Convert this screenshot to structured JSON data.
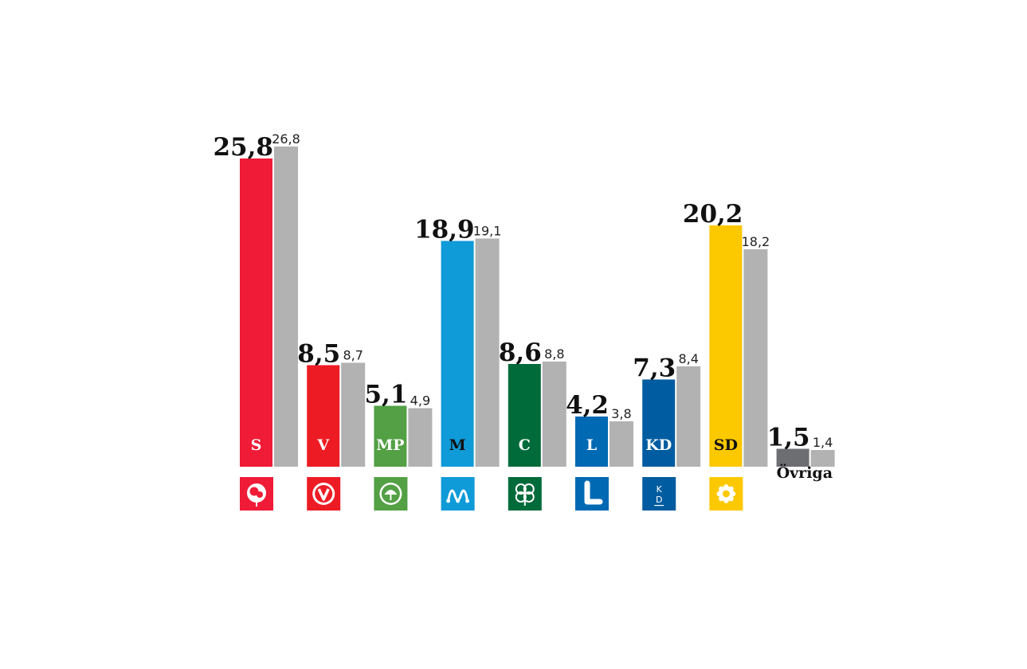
{
  "chart_data": {
    "type": "bar",
    "categories": [
      "S",
      "V",
      "MP",
      "M",
      "C",
      "L",
      "KD",
      "SD",
      "Övriga"
    ],
    "series": [
      {
        "values": [
          25.8,
          8.5,
          5.1,
          18.9,
          8.6,
          4.2,
          7.3,
          20.2,
          1.5
        ]
      },
      {
        "values": [
          26.8,
          8.7,
          4.9,
          19.1,
          8.8,
          3.8,
          8.4,
          18.2,
          1.4
        ]
      }
    ],
    "value_labels_main": [
      "25,8",
      "8,5",
      "5,1",
      "18,9",
      "8,6",
      "4,2",
      "7,3",
      "20,2",
      "1,5"
    ],
    "value_labels_prev": [
      "26,8",
      "8,7",
      "4,9",
      "19,1",
      "8,8",
      "3,8",
      "8,4",
      "18,2",
      "1,4"
    ],
    "bar_labels": [
      "S",
      "V",
      "MP",
      "M",
      "C",
      "L",
      "KD",
      "SD",
      ""
    ],
    "other_label": "Övriga",
    "colors": [
      "#ef1b37",
      "#ed1c24",
      "#53a045",
      "#0f9ad8",
      "#006b3a",
      "#0069b4",
      "#005ca0",
      "#fcc800",
      "#6d6e71"
    ],
    "label_colors": [
      "#ffffff",
      "#ffffff",
      "#ffffff",
      "#111111",
      "#ffffff",
      "#ffffff",
      "#ffffff",
      "#111111",
      "#ffffff"
    ],
    "prev_color": "#b2b2b2",
    "logos": [
      "rose-logo",
      "v-logo",
      "dandelion-logo",
      "m-logo",
      "clover-logo",
      "l-logo",
      "kd-logo",
      "flower-logo",
      ""
    ],
    "grid": false,
    "legend": "none"
  }
}
